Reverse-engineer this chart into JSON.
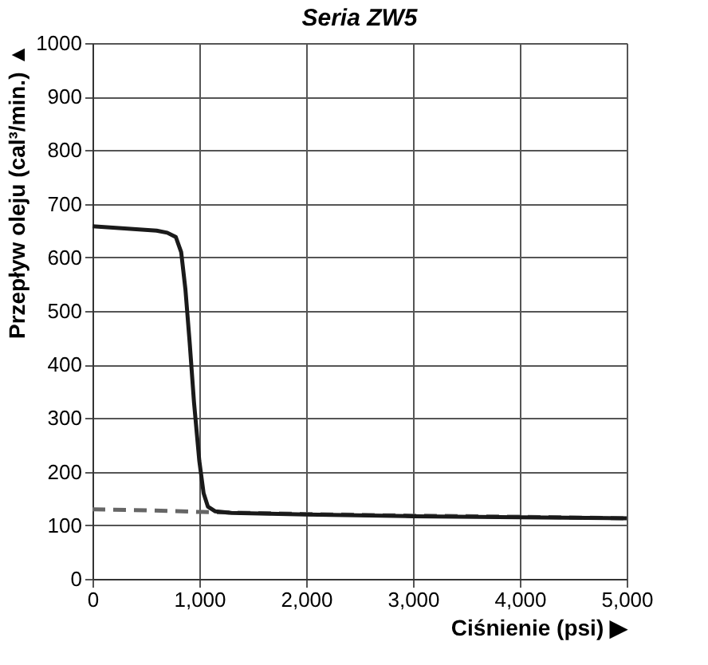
{
  "chart_data": {
    "type": "line",
    "title": "Seria ZW5",
    "xlabel": "Ciśnienie (psi) ▶",
    "ylabel": "Przepływ oleju (cal³/min.) ▲",
    "xlim": [
      0,
      5000
    ],
    "xticks": [
      0,
      {
        "value": 1000,
        "label": "1,000"
      },
      {
        "value": 2000,
        "label": "2,000"
      },
      {
        "value": 3000,
        "label": "3,000"
      },
      {
        "value": 4000,
        "label": "4,000"
      },
      {
        "value": 5000,
        "label": "5,000"
      }
    ],
    "ylim": [
      0,
      1000
    ],
    "yticks": [
      0,
      100,
      200,
      300,
      400,
      500,
      600,
      700,
      800,
      900,
      1000
    ],
    "grid": true,
    "legend": false,
    "series": [
      {
        "color": "#666666",
        "line_style": "dashed",
        "x": [
          0,
          500,
          1000,
          1500,
          2000,
          3000,
          4000,
          5000
        ],
        "values": [
          130,
          128,
          125,
          123,
          121,
          118,
          116,
          113
        ]
      },
      {
        "color": "#1a1a1a",
        "line_style": "solid",
        "x": [
          0,
          300,
          600,
          700,
          780,
          830,
          870,
          910,
          950,
          1000,
          1040,
          1080,
          1150,
          1300,
          2000,
          3000,
          4000,
          5000
        ],
        "values": [
          658,
          654,
          650,
          646,
          638,
          610,
          540,
          440,
          330,
          220,
          160,
          135,
          126,
          123,
          120,
          117,
          115,
          113
        ]
      }
    ]
  }
}
